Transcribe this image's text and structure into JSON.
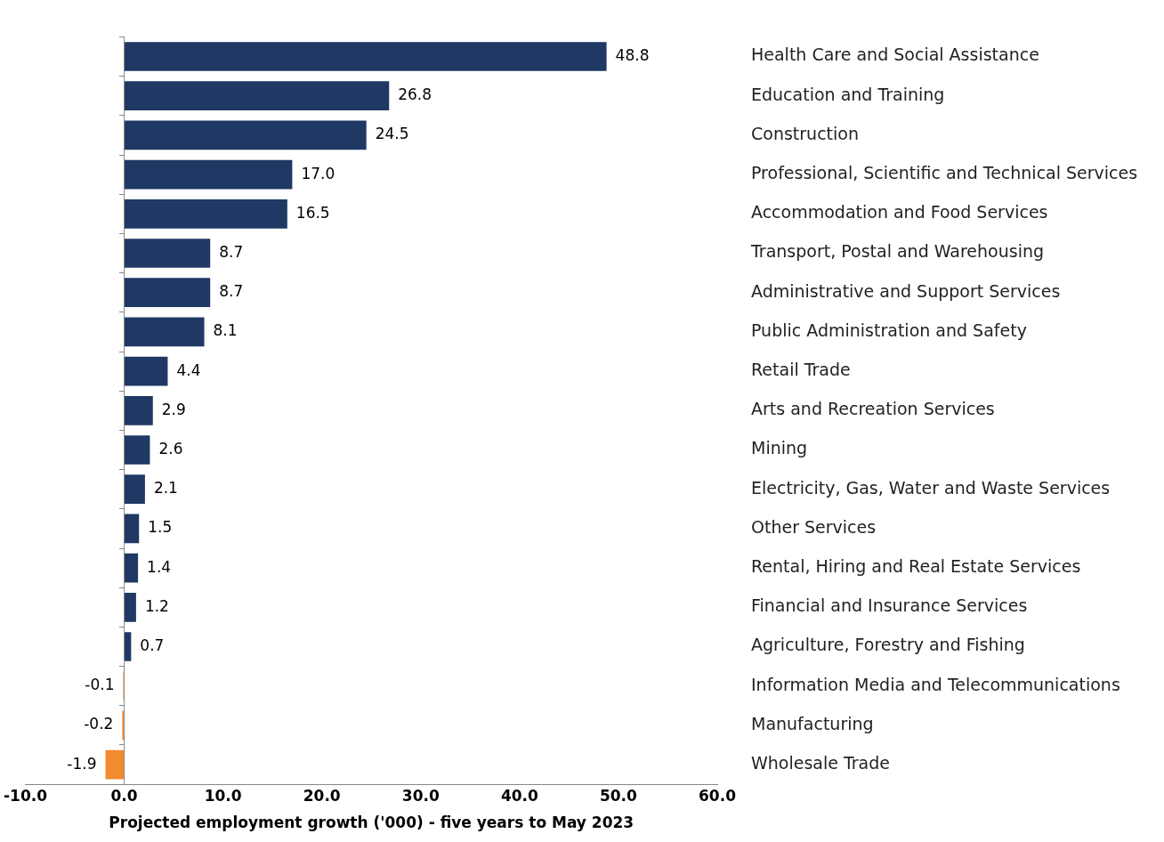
{
  "chart_data": {
    "type": "bar",
    "orientation": "horizontal",
    "xlabel": "Projected employment growth ('000) - five years to May 2023",
    "categories": [
      "Health Care and Social Assistance",
      "Education and Training",
      "Construction",
      "Professional, Scientific and Technical Services",
      "Accommodation and Food Services",
      "Transport, Postal and Warehousing",
      "Administrative and Support Services",
      "Public Administration and Safety",
      "Retail Trade",
      "Arts and Recreation Services",
      "Mining",
      "Electricity, Gas, Water and Waste Services",
      "Other Services",
      "Rental, Hiring and Real Estate Services",
      "Financial and Insurance Services",
      "Agriculture, Forestry and Fishing",
      "Information Media and Telecommunications",
      "Manufacturing",
      "Wholesale Trade"
    ],
    "values": [
      48.8,
      26.8,
      24.5,
      17.0,
      16.5,
      8.7,
      8.7,
      8.1,
      4.4,
      2.9,
      2.6,
      2.1,
      1.5,
      1.4,
      1.2,
      0.7,
      -0.1,
      -0.2,
      -1.9
    ],
    "value_labels": [
      "48.8",
      "26.8",
      "24.5",
      "17.0",
      "16.5",
      "8.7",
      "8.7",
      "8.1",
      "4.4",
      "2.9",
      "2.6",
      "2.1",
      "1.5",
      "1.4",
      "1.2",
      "0.7",
      "-0.1",
      "-0.2",
      "-1.9"
    ],
    "colors": [
      "#1f3864",
      "#1f3864",
      "#1f3864",
      "#1f3864",
      "#1f3864",
      "#1f3864",
      "#1f3864",
      "#1f3864",
      "#1f3864",
      "#1f3864",
      "#1f3864",
      "#1f3864",
      "#1f3864",
      "#1f3864",
      "#1f3864",
      "#1f3864",
      "#f28a30",
      "#f28a30",
      "#f28a30"
    ],
    "xlim": [
      -10,
      60
    ],
    "xticks": [
      {
        "value": -10,
        "label": "-10.0"
      },
      {
        "value": 0,
        "label": "0.0"
      },
      {
        "value": 10,
        "label": "10.0"
      },
      {
        "value": 20,
        "label": "20.0"
      },
      {
        "value": 30,
        "label": "30.0"
      },
      {
        "value": 40,
        "label": "40.0"
      },
      {
        "value": 50,
        "label": "50.0"
      },
      {
        "value": 60,
        "label": "60.0"
      }
    ],
    "ref_lines": [
      {
        "axis": "x",
        "value": 0,
        "color": "#888888"
      }
    ],
    "grid": false,
    "legend": false
  }
}
